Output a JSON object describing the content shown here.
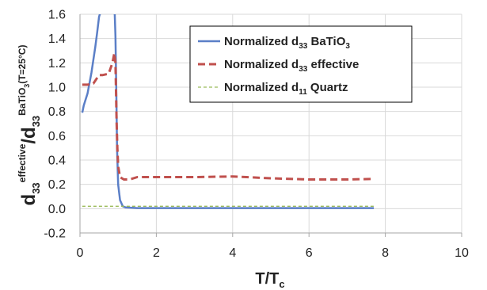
{
  "chart_data": {
    "type": "line",
    "title": "",
    "xlabel": {
      "main": "T/T",
      "sub": "c"
    },
    "ylabel": {
      "parts": [
        {
          "text": "d",
          "style": "main"
        },
        {
          "text": "33",
          "style": "sub"
        },
        {
          "text": "effective",
          "style": "sup"
        },
        {
          "text": "/d",
          "style": "main"
        },
        {
          "text": "33",
          "style": "sub"
        },
        {
          "text": "BaTiO",
          "style": "sup"
        },
        {
          "text": "3",
          "style": "supsub"
        },
        {
          "text": "(T=25°C)",
          "style": "sup"
        }
      ]
    },
    "xlim": [
      0,
      10
    ],
    "ylim": [
      -0.2,
      1.6
    ],
    "xticks": [
      "0",
      "2",
      "4",
      "6",
      "8",
      "10"
    ],
    "xtick_values": [
      0,
      2,
      4,
      6,
      8,
      10
    ],
    "yticks": [
      "-0.2",
      "0.0",
      "0.2",
      "0.4",
      "0.6",
      "0.8",
      "1.0",
      "1.2",
      "1.4",
      "1.6"
    ],
    "ytick_values": [
      -0.2,
      0,
      0.2,
      0.4,
      0.6,
      0.8,
      1.0,
      1.2,
      1.4,
      1.6
    ],
    "grid": true,
    "legend_position": "top-right",
    "series": [
      {
        "name": "Normalized d33 BaTiO3",
        "legend_parts": [
          {
            "text": "Normalized d",
            "style": "main"
          },
          {
            "text": "33",
            "style": "sub"
          },
          {
            "text": " BaTiO",
            "style": "main"
          },
          {
            "text": "3",
            "style": "sub"
          }
        ],
        "color": "#5b7fc7",
        "dash": "solid",
        "segments": [
          [
            [
              0.06,
              0.79
            ],
            [
              0.1,
              0.85
            ],
            [
              0.2,
              0.95
            ],
            [
              0.3,
              1.12
            ],
            [
              0.4,
              1.33
            ],
            [
              0.45,
              1.45
            ],
            [
              0.5,
              1.58
            ],
            [
              0.52,
              1.6
            ]
          ],
          [
            [
              0.91,
              1.6
            ],
            [
              0.93,
              1.42
            ],
            [
              0.95,
              1.0
            ],
            [
              0.97,
              0.5
            ],
            [
              1.0,
              0.2
            ],
            [
              1.05,
              0.07
            ],
            [
              1.12,
              0.02
            ],
            [
              1.2,
              0.01
            ],
            [
              1.5,
              0.005
            ],
            [
              2,
              0.005
            ],
            [
              4,
              0.005
            ],
            [
              6,
              0.005
            ],
            [
              7.7,
              0.005
            ]
          ]
        ],
        "dotted_segments": [
          [
            [
              0.52,
              1.6
            ],
            [
              0.56,
              1.75
            ]
          ],
          [
            [
              0.88,
              1.75
            ],
            [
              0.91,
              1.6
            ]
          ]
        ]
      },
      {
        "name": "Normalized d33 effective",
        "legend_parts": [
          {
            "text": "Normalized d",
            "style": "main"
          },
          {
            "text": "33",
            "style": "sub"
          },
          {
            "text": " effective",
            "style": "main"
          }
        ],
        "color": "#c0504d",
        "dash": "dashed",
        "segments": [
          [
            [
              0.06,
              1.02
            ],
            [
              0.2,
              1.02
            ],
            [
              0.35,
              1.03
            ],
            [
              0.5,
              1.1
            ],
            [
              0.6,
              1.1
            ],
            [
              0.75,
              1.11
            ],
            [
              0.85,
              1.2
            ],
            [
              0.9,
              1.28
            ],
            [
              0.93,
              1.2
            ],
            [
              0.96,
              0.7
            ],
            [
              0.98,
              0.5
            ],
            [
              1.0,
              0.35
            ],
            [
              1.05,
              0.26
            ],
            [
              1.15,
              0.24
            ],
            [
              1.3,
              0.24
            ],
            [
              1.5,
              0.26
            ],
            [
              2,
              0.26
            ],
            [
              3,
              0.26
            ],
            [
              4,
              0.265
            ],
            [
              5,
              0.25
            ],
            [
              6,
              0.24
            ],
            [
              7,
              0.24
            ],
            [
              7.7,
              0.245
            ]
          ]
        ]
      },
      {
        "name": "Normalized d11 Quartz",
        "legend_parts": [
          {
            "text": "Normalized d",
            "style": "main"
          },
          {
            "text": "11",
            "style": "sub"
          },
          {
            "text": " Quartz",
            "style": "main"
          }
        ],
        "color": "#9bbb59",
        "dash": "short-dash",
        "segments": [
          [
            [
              0.06,
              0.02
            ],
            [
              2,
              0.02
            ],
            [
              4,
              0.02
            ],
            [
              6,
              0.02
            ],
            [
              7.7,
              0.02
            ]
          ]
        ]
      }
    ]
  }
}
